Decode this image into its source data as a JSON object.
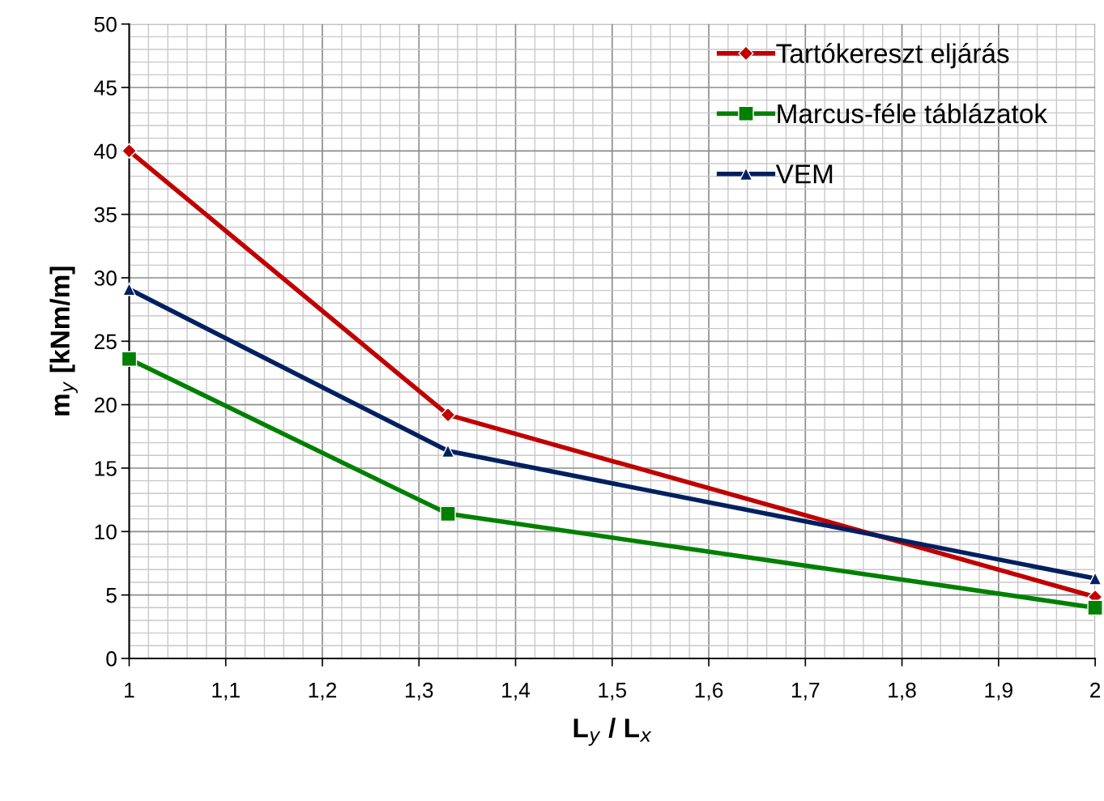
{
  "chart_data": {
    "type": "line",
    "xlabel": "L$_{y}$ / L$_{x}$",
    "ylabel": "m$_{y}$ [kNm/m]",
    "x": [
      1,
      1.33,
      2
    ],
    "series": [
      {
        "name": "Tartókereszt eljárás",
        "color": "#c00000",
        "marker": "diamond",
        "values": [
          40,
          19.2,
          4.85
        ]
      },
      {
        "name": "Marcus-féle táblázatok",
        "color": "#008000",
        "marker": "square",
        "values": [
          23.6,
          11.4,
          4.0
        ]
      },
      {
        "name": "VEM",
        "color": "#002060",
        "marker": "triangle",
        "values": [
          29.1,
          16.35,
          6.3
        ]
      }
    ],
    "xlim": [
      1,
      2
    ],
    "xticks": [
      1,
      {
        "value": 1.1,
        "label": "1,1"
      },
      {
        "value": 1.2,
        "label": "1,2"
      },
      {
        "value": 1.3,
        "label": "1,3"
      },
      {
        "value": 1.4,
        "label": "1,4"
      },
      {
        "value": 1.5,
        "label": "1,5"
      },
      {
        "value": 1.6,
        "label": "1,6"
      },
      {
        "value": 1.7,
        "label": "1,7"
      },
      {
        "value": 1.8,
        "label": "1,8"
      },
      {
        "value": 1.9,
        "label": "1,9"
      },
      2
    ],
    "ylim": [
      0,
      50
    ],
    "yticks": [
      0,
      5,
      10,
      15,
      20,
      25,
      30,
      35,
      40,
      45,
      50
    ],
    "grid": true,
    "legend": "top right",
    "line_style": "solid"
  }
}
